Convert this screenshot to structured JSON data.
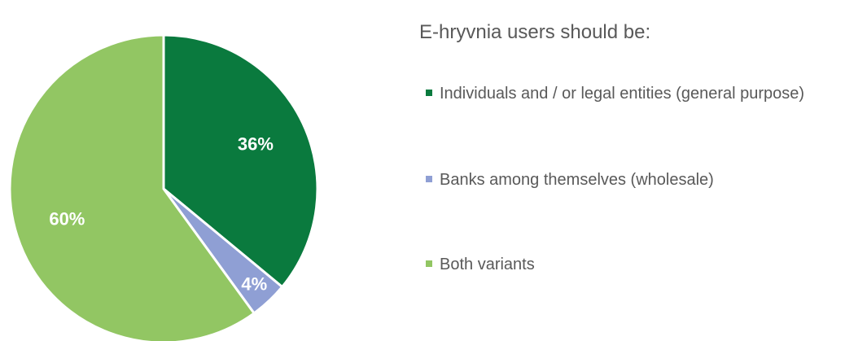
{
  "chart_data": {
    "type": "pie",
    "title": "E-hryvnia users should be:",
    "categories": [
      "Individuals and / or legal entities (general purpose)",
      "Banks among themselves (wholesale)",
      "Both variants"
    ],
    "values": [
      36,
      4,
      60
    ],
    "value_labels": [
      "36%",
      "4%",
      "60%"
    ],
    "colors": [
      "#0a7a3e",
      "#8f9fd4",
      "#92c663"
    ],
    "legend": "right"
  }
}
